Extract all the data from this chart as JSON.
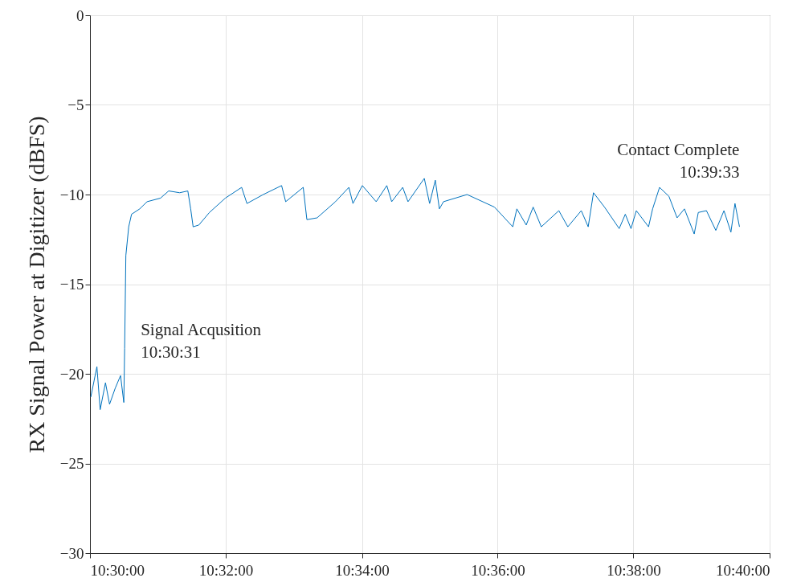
{
  "chart_data": {
    "type": "line",
    "ylabel": "RX Signal Power at Digitizer (dBFS)",
    "x": [
      10.5002,
      10.501,
      10.5017,
      10.5025,
      10.5038,
      10.5048,
      10.5062,
      10.5075,
      10.5083,
      10.5085,
      10.5088,
      10.5095,
      10.5102,
      10.5122,
      10.514,
      10.5173,
      10.5193,
      10.522,
      10.524,
      10.5247,
      10.5253,
      10.5267,
      10.5293,
      10.5332,
      10.5372,
      10.5385,
      10.5425,
      10.547,
      10.548,
      10.5523,
      10.5532,
      10.5557,
      10.5602,
      10.5635,
      10.5645,
      10.5668,
      10.5702,
      10.5728,
      10.574,
      10.5767,
      10.578,
      10.582,
      10.5833,
      10.5847,
      10.5857,
      10.5867,
      10.5925,
      10.5992,
      10.6037,
      10.6047,
      10.607,
      10.6087,
      10.6107,
      10.615,
      10.6172,
      10.6205,
      10.6222,
      10.6235,
      10.6262,
      10.6298,
      10.6313,
      10.6327,
      10.634,
      10.637,
      10.638,
      10.6397,
      10.642,
      10.644,
      10.6458,
      10.6482,
      10.6492,
      10.6512,
      10.6535,
      10.6555,
      10.6572,
      10.6582,
      10.6593
    ],
    "series": [
      {
        "color": "#0072bd",
        "values": [
          -21.3,
          -20.4,
          -19.6,
          -22.0,
          -20.5,
          -21.7,
          -20.8,
          -20.1,
          -21.6,
          -18.6,
          -13.4,
          -11.8,
          -11.1,
          -10.8,
          -10.4,
          -10.2,
          -9.8,
          -9.9,
          -9.8,
          -10.8,
          -11.8,
          -11.7,
          -11.0,
          -10.2,
          -9.6,
          -10.5,
          -10.0,
          -9.5,
          -10.4,
          -9.6,
          -11.4,
          -11.3,
          -10.4,
          -9.6,
          -10.5,
          -9.5,
          -10.4,
          -9.5,
          -10.4,
          -9.6,
          -10.4,
          -9.1,
          -10.5,
          -9.2,
          -10.8,
          -10.4,
          -10.0,
          -10.7,
          -11.8,
          -10.8,
          -11.7,
          -10.7,
          -11.8,
          -10.9,
          -11.8,
          -10.9,
          -11.8,
          -9.9,
          -10.7,
          -11.9,
          -11.1,
          -11.9,
          -10.9,
          -11.8,
          -10.8,
          -9.6,
          -10.1,
          -11.3,
          -10.8,
          -12.2,
          -11.0,
          -10.9,
          -12.0,
          -10.9,
          -12.1,
          -10.5,
          -11.8
        ]
      }
    ],
    "xlim": [
      10.5,
      10.6667
    ],
    "xticks": [
      {
        "value": 10.5,
        "label": "10:30:00"
      },
      {
        "value": 10.5333,
        "label": "10:32:00"
      },
      {
        "value": 10.5667,
        "label": "10:34:00"
      },
      {
        "value": 10.6,
        "label": "10:36:00"
      },
      {
        "value": 10.6333,
        "label": "10:38:00"
      },
      {
        "value": 10.6667,
        "label": "10:40:00"
      }
    ],
    "ylim": [
      -30,
      0
    ],
    "yticks": [
      -30,
      -25,
      -20,
      -15,
      -10,
      -5,
      0
    ],
    "grid": true,
    "annotations": [
      {
        "text": "Signal Acqusition\n10:30:31",
        "x": 10.5085,
        "y": -18.6
      },
      {
        "text": "Contact Complete\n10:39:33",
        "x": 10.6593,
        "y": -11.8
      }
    ],
    "line_style": "solid",
    "marker": "none"
  }
}
